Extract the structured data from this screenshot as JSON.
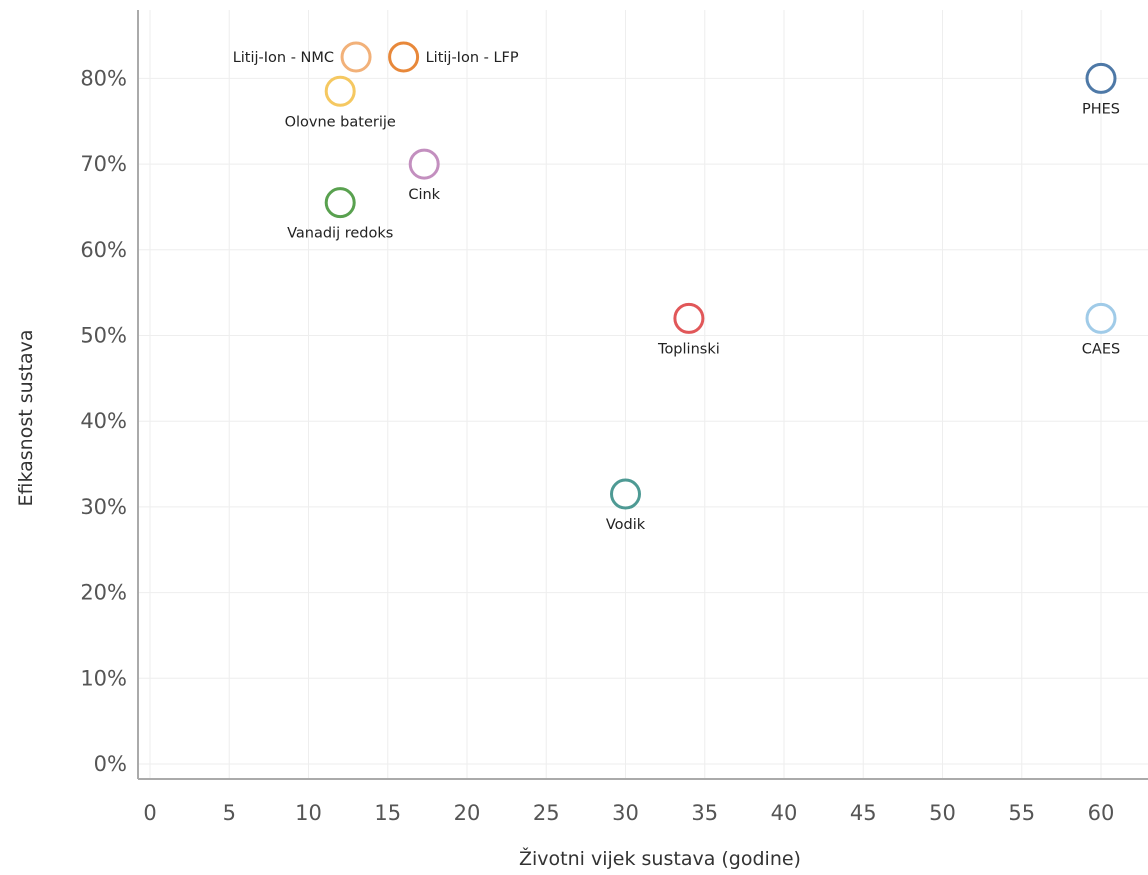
{
  "chart_data": {
    "type": "scatter",
    "xlabel": "Životni vijek sustava (godine)",
    "ylabel": "Efikasnost sustava",
    "xlim": [
      0,
      62.5
    ],
    "ylim": [
      0,
      0.885
    ],
    "x_ticks": [
      0,
      5,
      10,
      15,
      20,
      25,
      30,
      35,
      40,
      45,
      50,
      55,
      60
    ],
    "x_tick_labels": [
      "0",
      "5",
      "10",
      "15",
      "20",
      "25",
      "30",
      "35",
      "40",
      "45",
      "50",
      "55",
      "60"
    ],
    "y_ticks": [
      0,
      0.1,
      0.2,
      0.3,
      0.4,
      0.5,
      0.6,
      0.7,
      0.8
    ],
    "y_tick_labels": [
      "0%",
      "10%",
      "20%",
      "30%",
      "40%",
      "50%",
      "60%",
      "70%",
      "80%"
    ],
    "grid": true,
    "legend": "none",
    "points": [
      {
        "label": "Litij-Ion - NMC",
        "x": 13,
        "y": 0.825,
        "color": "#f2b179",
        "label_pos": "left"
      },
      {
        "label": "Litij-Ion - LFP",
        "x": 16,
        "y": 0.825,
        "color": "#e8883a",
        "label_pos": "right"
      },
      {
        "label": "Olovne baterije",
        "x": 12,
        "y": 0.785,
        "color": "#f5c861",
        "label_pos": "below"
      },
      {
        "label": "Cink",
        "x": 17.3,
        "y": 0.7,
        "color": "#c38fbf",
        "label_pos": "below"
      },
      {
        "label": "Vanadij redoks",
        "x": 12,
        "y": 0.655,
        "color": "#59a14f",
        "label_pos": "below"
      },
      {
        "label": "PHES",
        "x": 60,
        "y": 0.8,
        "color": "#4e79a7",
        "label_pos": "below"
      },
      {
        "label": "Toplinski",
        "x": 34,
        "y": 0.52,
        "color": "#e15759",
        "label_pos": "below"
      },
      {
        "label": "CAES",
        "x": 60,
        "y": 0.52,
        "color": "#a0cbe8",
        "label_pos": "below"
      },
      {
        "label": "Vodik",
        "x": 30,
        "y": 0.315,
        "color": "#4e9a94",
        "label_pos": "below"
      }
    ]
  }
}
